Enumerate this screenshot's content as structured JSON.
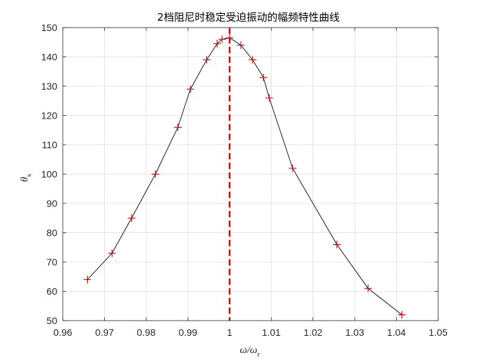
{
  "chart_data": {
    "type": "line",
    "title": "2档阻尼时稳定受迫振动的幅频特性曲线",
    "xlabel": {
      "main": "ω/ω",
      "sub": "r"
    },
    "ylabel": {
      "main": "θ",
      "sub": "s"
    },
    "xlim": [
      0.96,
      1.05
    ],
    "ylim": [
      50,
      150
    ],
    "x_ticks": [
      0.96,
      0.97,
      0.98,
      0.99,
      1,
      1.01,
      1.02,
      1.03,
      1.04,
      1.05
    ],
    "x_tick_labels": [
      "0.96",
      "0.97",
      "0.98",
      "0.99",
      "1",
      "1.01",
      "1.02",
      "1.03",
      "1.04",
      "1.05"
    ],
    "y_ticks": [
      50,
      60,
      70,
      80,
      90,
      100,
      110,
      120,
      130,
      140,
      150
    ],
    "y_tick_labels": [
      "50",
      "60",
      "70",
      "80",
      "90",
      "100",
      "110",
      "120",
      "130",
      "140",
      "150"
    ],
    "grid": true,
    "series": [
      {
        "line_color": "#000000",
        "marker": "+",
        "marker_color": "#cc0000",
        "x": [
          0.9659,
          0.9718,
          0.9765,
          0.9822,
          0.9876,
          0.9906,
          0.9945,
          0.997,
          0.9982,
          1.0,
          1.0027,
          1.0055,
          1.0081,
          1.0095,
          1.0151,
          1.0257,
          1.0332,
          1.0413
        ],
        "y": [
          64,
          73,
          85,
          100,
          116,
          129,
          139,
          144.5,
          146,
          146.5,
          144,
          139,
          133,
          126,
          102,
          76,
          61,
          52
        ]
      }
    ],
    "reference_line": {
      "x": 1.0,
      "color": "#e00000",
      "style": "dashed"
    }
  }
}
